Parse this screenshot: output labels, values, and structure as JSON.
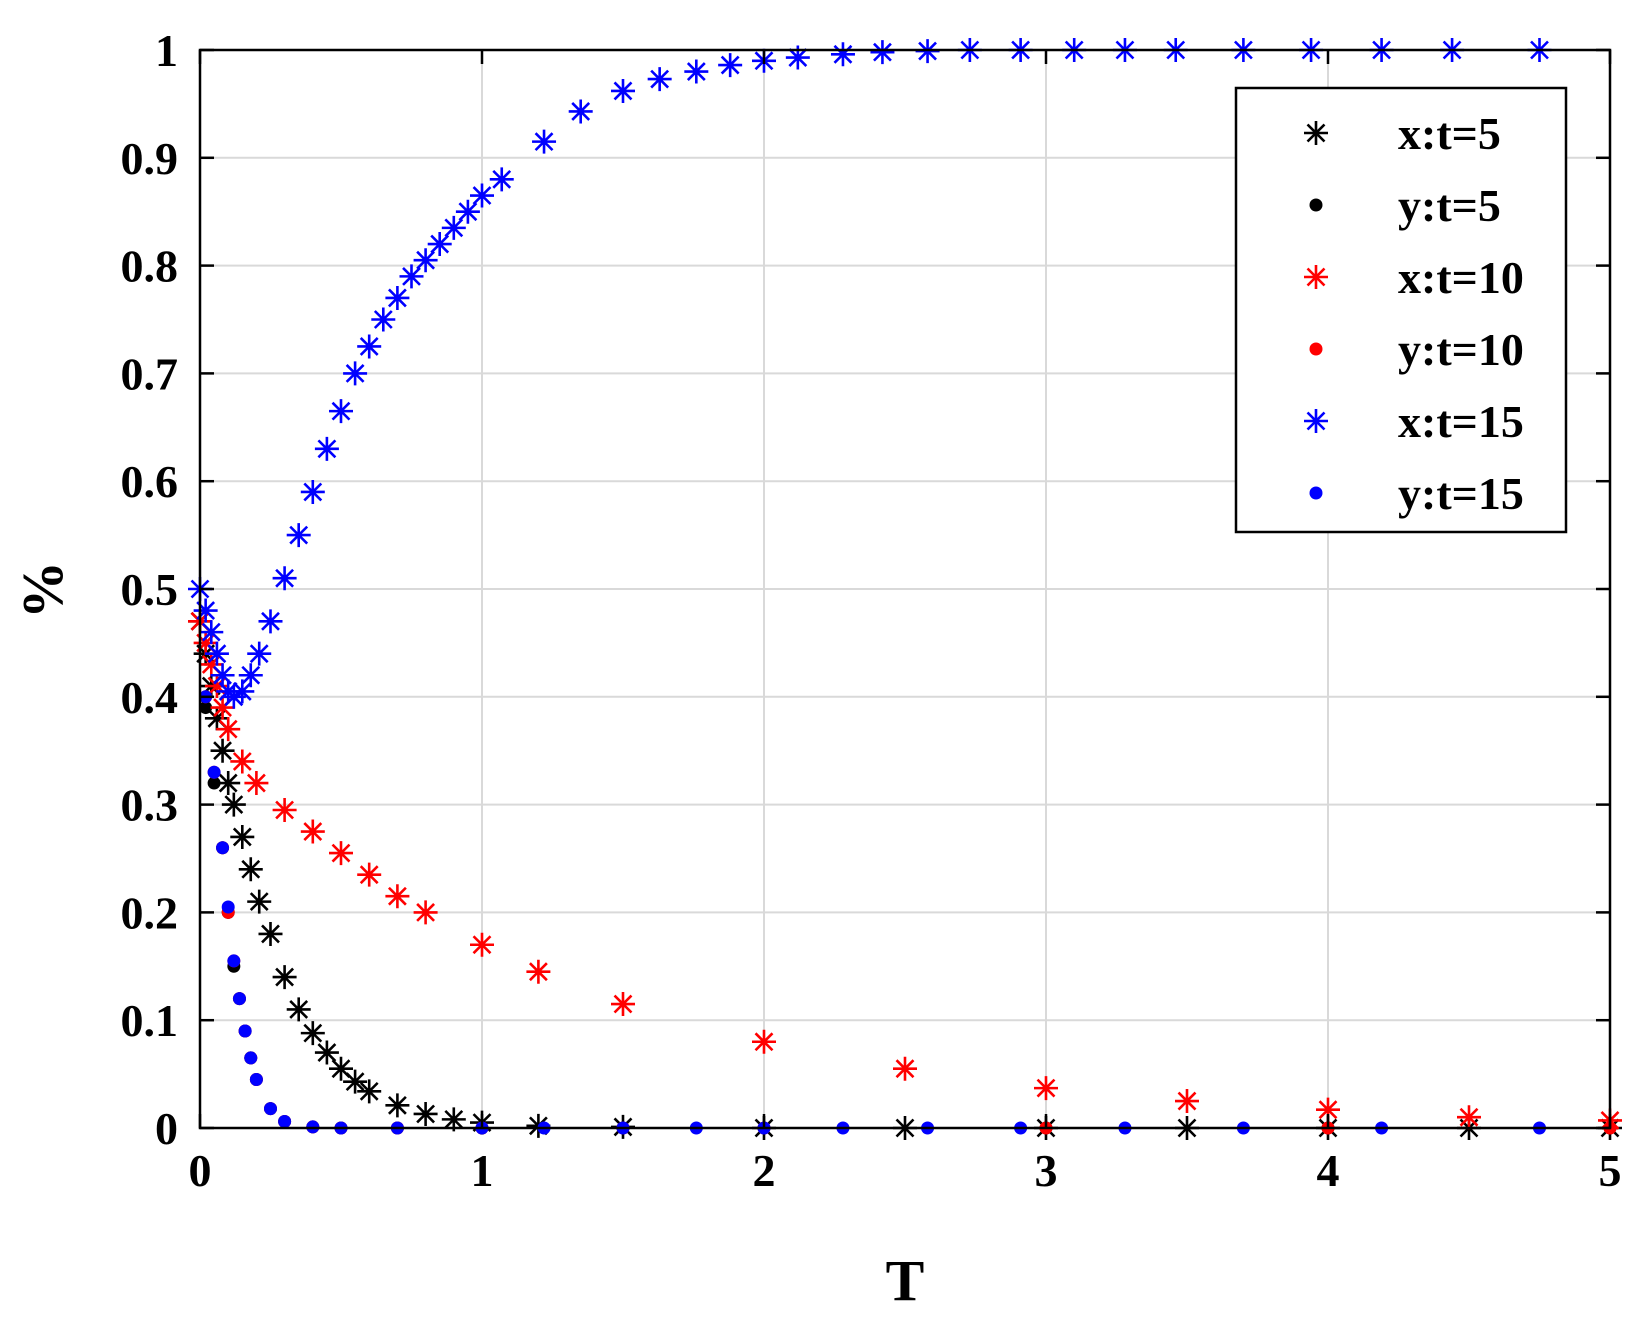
{
  "chart_data": {
    "type": "scatter",
    "xlabel": "T",
    "ylabel": "%",
    "xlim": [
      0,
      5
    ],
    "ylim": [
      0,
      1
    ],
    "xticks": [
      0,
      1,
      2,
      3,
      4,
      5
    ],
    "yticks": [
      0,
      0.1,
      0.2,
      0.3,
      0.4,
      0.5,
      0.6,
      0.7,
      0.8,
      0.9,
      1
    ],
    "xtick_labels": [
      "0",
      "1",
      "2",
      "3",
      "4",
      "5"
    ],
    "ytick_labels": [
      "0",
      "0.1",
      "0.2",
      "0.3",
      "0.4",
      "0.5",
      "0.6",
      "0.7",
      "0.8",
      "0.9",
      "1"
    ],
    "grid": true,
    "legend_position": "top-right",
    "series": [
      {
        "name": "x:t=5",
        "marker": "star",
        "color": "#000000",
        "x": [
          0.0,
          0.02,
          0.04,
          0.06,
          0.08,
          0.1,
          0.12,
          0.15,
          0.18,
          0.21,
          0.25,
          0.3,
          0.35,
          0.4,
          0.45,
          0.5,
          0.55,
          0.6,
          0.7,
          0.8,
          0.9,
          1.0,
          1.2,
          1.5,
          2.0,
          2.5,
          3.0,
          3.5,
          4.0,
          4.5,
          5.0
        ],
        "y": [
          0.47,
          0.44,
          0.41,
          0.38,
          0.35,
          0.32,
          0.3,
          0.27,
          0.24,
          0.21,
          0.18,
          0.14,
          0.11,
          0.088,
          0.07,
          0.055,
          0.043,
          0.034,
          0.021,
          0.013,
          0.008,
          0.005,
          0.002,
          0.001,
          0.0,
          0.0,
          0.0,
          0.0,
          0.0,
          0.0,
          0.0
        ]
      },
      {
        "name": "y:t=5",
        "marker": "dot",
        "color": "#000000",
        "x": [
          0.02,
          0.05,
          0.08,
          0.1,
          0.12,
          0.14,
          0.16,
          0.18,
          0.2,
          0.25,
          0.3,
          0.4,
          0.5,
          0.7,
          1.0,
          1.5,
          2.0,
          3.0,
          4.0,
          5.0
        ],
        "y": [
          0.39,
          0.32,
          0.26,
          0.2,
          0.15,
          0.12,
          0.09,
          0.065,
          0.045,
          0.018,
          0.006,
          0.001,
          0.0,
          0.0,
          0.0,
          0.0,
          0.0,
          0.0,
          0.0,
          0.0
        ]
      },
      {
        "name": "x:t=10",
        "marker": "star",
        "color": "#ff0000",
        "x": [
          0.0,
          0.02,
          0.04,
          0.06,
          0.08,
          0.1,
          0.15,
          0.2,
          0.3,
          0.4,
          0.5,
          0.6,
          0.7,
          0.8,
          1.0,
          1.2,
          1.5,
          2.0,
          2.5,
          3.0,
          3.5,
          4.0,
          4.5,
          5.0
        ],
        "y": [
          0.47,
          0.45,
          0.43,
          0.41,
          0.39,
          0.37,
          0.34,
          0.32,
          0.295,
          0.275,
          0.255,
          0.235,
          0.215,
          0.2,
          0.17,
          0.145,
          0.115,
          0.08,
          0.055,
          0.037,
          0.025,
          0.017,
          0.01,
          0.007
        ]
      },
      {
        "name": "y:t=10",
        "marker": "dot",
        "color": "#ff0000",
        "x": [
          0.02,
          0.05,
          0.08,
          0.1,
          0.12,
          0.14,
          0.16,
          0.18,
          0.2,
          0.25,
          0.3,
          0.4,
          0.5,
          0.7,
          1.0,
          1.5,
          2.0,
          3.0,
          4.0,
          5.0
        ],
        "y": [
          0.4,
          0.33,
          0.26,
          0.2,
          0.155,
          0.12,
          0.09,
          0.065,
          0.045,
          0.018,
          0.006,
          0.001,
          0.0,
          0.0,
          0.0,
          0.0,
          0.0,
          0.0,
          0.0,
          0.0
        ]
      },
      {
        "name": "x:t=15",
        "marker": "star",
        "color": "#0000ff",
        "x": [
          0.0,
          0.02,
          0.04,
          0.06,
          0.08,
          0.1,
          0.12,
          0.15,
          0.18,
          0.21,
          0.25,
          0.3,
          0.35,
          0.4,
          0.45,
          0.5,
          0.55,
          0.6,
          0.65,
          0.7,
          0.75,
          0.8,
          0.85,
          0.9,
          0.95,
          1.0,
          1.07,
          1.22,
          1.35,
          1.5,
          1.63,
          1.76,
          1.88,
          2.0,
          2.12,
          2.28,
          2.42,
          2.58,
          2.73,
          2.91,
          3.1,
          3.28,
          3.46,
          3.7,
          3.94,
          4.19,
          4.44,
          4.75
        ],
        "y": [
          0.5,
          0.48,
          0.46,
          0.44,
          0.42,
          0.405,
          0.4,
          0.405,
          0.42,
          0.44,
          0.47,
          0.51,
          0.55,
          0.59,
          0.63,
          0.665,
          0.7,
          0.725,
          0.75,
          0.77,
          0.79,
          0.805,
          0.82,
          0.835,
          0.85,
          0.865,
          0.88,
          0.915,
          0.943,
          0.962,
          0.973,
          0.98,
          0.986,
          0.99,
          0.993,
          0.996,
          0.998,
          0.999,
          1.0,
          1.0,
          1.0,
          1.0,
          1.0,
          1.0,
          1.0,
          1.0,
          1.0,
          1.0
        ]
      },
      {
        "name": "y:t=15",
        "marker": "dot",
        "color": "#0000ff",
        "x": [
          0.02,
          0.05,
          0.08,
          0.1,
          0.12,
          0.14,
          0.16,
          0.18,
          0.2,
          0.25,
          0.3,
          0.4,
          0.5,
          0.7,
          1.0,
          1.22,
          1.5,
          1.76,
          2.0,
          2.28,
          2.58,
          2.91,
          3.28,
          3.7,
          4.19,
          4.75
        ],
        "y": [
          0.4,
          0.33,
          0.26,
          0.205,
          0.155,
          0.12,
          0.09,
          0.065,
          0.045,
          0.018,
          0.006,
          0.001,
          0.0,
          0.0,
          0.0,
          0.0,
          0.0,
          0.0,
          0.0,
          0.0,
          0.0,
          0.0,
          0.0,
          0.0,
          0.0,
          0.0
        ]
      }
    ]
  }
}
